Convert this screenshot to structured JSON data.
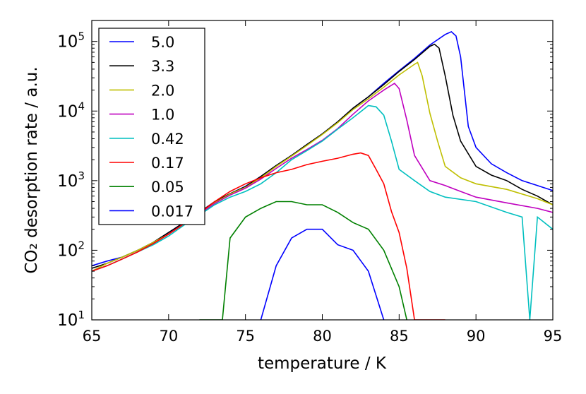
{
  "chart_data": {
    "type": "line",
    "xlabel": "temperature / K",
    "ylabel": "CO₂ desorption rate / a.u.",
    "xlim": [
      65,
      95
    ],
    "ylim": [
      10,
      200000
    ],
    "yscale": "log",
    "xticks": [
      "65",
      "70",
      "75",
      "80",
      "85",
      "90",
      "95"
    ],
    "yticks": [
      {
        "base": "10",
        "exp": "1"
      },
      {
        "base": "10",
        "exp": "2"
      },
      {
        "base": "10",
        "exp": "3"
      },
      {
        "base": "10",
        "exp": "4"
      },
      {
        "base": "10",
        "exp": "5"
      }
    ],
    "grid": false,
    "legend_placement": "top-left",
    "series": [
      {
        "name": "5.0",
        "color": "#0000ff",
        "points": [
          [
            65,
            60
          ],
          [
            66,
            70
          ],
          [
            67,
            80
          ],
          [
            68,
            100
          ],
          [
            69,
            130
          ],
          [
            70,
            180
          ],
          [
            71,
            250
          ],
          [
            72,
            350
          ],
          [
            73,
            500
          ],
          [
            74,
            650
          ],
          [
            75,
            830
          ],
          [
            76,
            1150
          ],
          [
            77,
            1650
          ],
          [
            78,
            2300
          ],
          [
            79,
            3300
          ],
          [
            80,
            4700
          ],
          [
            81,
            7000
          ],
          [
            82,
            11000
          ],
          [
            83,
            16000
          ],
          [
            84,
            25000
          ],
          [
            85,
            38000
          ],
          [
            86,
            57000
          ],
          [
            87,
            89000
          ],
          [
            88,
            126000
          ],
          [
            88.4,
            138000
          ],
          [
            88.7,
            120000
          ],
          [
            89,
            60000
          ],
          [
            89.5,
            6000
          ],
          [
            90,
            3000
          ],
          [
            91,
            1750
          ],
          [
            92,
            1300
          ],
          [
            93,
            1000
          ],
          [
            94,
            850
          ],
          [
            95,
            720
          ]
        ]
      },
      {
        "name": "3.3",
        "color": "#000000",
        "points": [
          [
            65,
            55
          ],
          [
            66,
            65
          ],
          [
            67,
            80
          ],
          [
            68,
            100
          ],
          [
            69,
            130
          ],
          [
            70,
            180
          ],
          [
            71,
            250
          ],
          [
            72,
            350
          ],
          [
            73,
            500
          ],
          [
            74,
            650
          ],
          [
            75,
            820
          ],
          [
            76,
            1150
          ],
          [
            77,
            1650
          ],
          [
            78,
            2300
          ],
          [
            79,
            3300
          ],
          [
            80,
            4700
          ],
          [
            81,
            7000
          ],
          [
            82,
            11000
          ],
          [
            83,
            16000
          ],
          [
            84,
            24000
          ],
          [
            85,
            37000
          ],
          [
            86,
            55000
          ],
          [
            87,
            85000
          ],
          [
            87.3,
            91000
          ],
          [
            87.6,
            80000
          ],
          [
            88,
            32000
          ],
          [
            88.5,
            8700
          ],
          [
            89,
            3700
          ],
          [
            90,
            1600
          ],
          [
            91,
            1200
          ],
          [
            92,
            1000
          ],
          [
            93,
            750
          ],
          [
            94,
            600
          ],
          [
            95,
            450
          ]
        ]
      },
      {
        "name": "2.0",
        "color": "#bfbf00",
        "points": [
          [
            65,
            50
          ],
          [
            66,
            65
          ],
          [
            67,
            80
          ],
          [
            68,
            100
          ],
          [
            69,
            130
          ],
          [
            70,
            170
          ],
          [
            71,
            240
          ],
          [
            72,
            330
          ],
          [
            73,
            480
          ],
          [
            74,
            640
          ],
          [
            75,
            800
          ],
          [
            76,
            1100
          ],
          [
            77,
            1600
          ],
          [
            78,
            2250
          ],
          [
            79,
            3200
          ],
          [
            80,
            4600
          ],
          [
            81,
            6800
          ],
          [
            82,
            10500
          ],
          [
            83,
            15000
          ],
          [
            84,
            22000
          ],
          [
            85,
            33000
          ],
          [
            86,
            47000
          ],
          [
            86.2,
            50000
          ],
          [
            86.5,
            32000
          ],
          [
            87,
            9300
          ],
          [
            87.5,
            3700
          ],
          [
            88,
            1600
          ],
          [
            89,
            1100
          ],
          [
            90,
            900
          ],
          [
            92,
            750
          ],
          [
            94,
            550
          ],
          [
            95,
            450
          ]
        ]
      },
      {
        "name": "1.0",
        "color": "#bf00bf",
        "points": [
          [
            65,
            50
          ],
          [
            66,
            60
          ],
          [
            67,
            75
          ],
          [
            68,
            95
          ],
          [
            69,
            125
          ],
          [
            70,
            170
          ],
          [
            71,
            240
          ],
          [
            72,
            330
          ],
          [
            73,
            470
          ],
          [
            74,
            620
          ],
          [
            75,
            780
          ],
          [
            76,
            1050
          ],
          [
            77,
            1500
          ],
          [
            78,
            2100
          ],
          [
            79,
            2800
          ],
          [
            80,
            3800
          ],
          [
            81,
            5600
          ],
          [
            82,
            9000
          ],
          [
            83,
            14000
          ],
          [
            84,
            20000
          ],
          [
            84.7,
            25000
          ],
          [
            85,
            21000
          ],
          [
            85.5,
            7400
          ],
          [
            86,
            2300
          ],
          [
            87,
            1000
          ],
          [
            88,
            850
          ],
          [
            89,
            700
          ],
          [
            90,
            580
          ],
          [
            92,
            480
          ],
          [
            94,
            400
          ],
          [
            95,
            350
          ]
        ]
      },
      {
        "name": "0.42",
        "color": "#00bfbf",
        "points": [
          [
            65,
            50
          ],
          [
            66,
            60
          ],
          [
            67,
            75
          ],
          [
            68,
            95
          ],
          [
            69,
            120
          ],
          [
            70,
            160
          ],
          [
            71,
            230
          ],
          [
            72,
            320
          ],
          [
            73,
            450
          ],
          [
            74,
            580
          ],
          [
            75,
            700
          ],
          [
            76,
            900
          ],
          [
            77,
            1300
          ],
          [
            78,
            2000
          ],
          [
            79,
            2700
          ],
          [
            80,
            3700
          ],
          [
            81,
            5500
          ],
          [
            82,
            8000
          ],
          [
            83,
            12000
          ],
          [
            83.5,
            11500
          ],
          [
            84,
            8700
          ],
          [
            84.5,
            3700
          ],
          [
            85,
            1450
          ],
          [
            86,
            1000
          ],
          [
            87,
            700
          ],
          [
            88,
            580
          ],
          [
            90,
            500
          ],
          [
            92,
            350
          ],
          [
            93,
            300
          ],
          [
            93.5,
            10
          ],
          [
            94,
            300
          ],
          [
            95,
            200
          ]
        ]
      },
      {
        "name": "0.17",
        "color": "#ff0000",
        "points": [
          [
            65,
            50
          ],
          [
            66,
            60
          ],
          [
            67,
            75
          ],
          [
            68,
            95
          ],
          [
            69,
            125
          ],
          [
            70,
            170
          ],
          [
            71,
            240
          ],
          [
            72,
            340
          ],
          [
            73,
            500
          ],
          [
            74,
            700
          ],
          [
            75,
            900
          ],
          [
            76,
            1100
          ],
          [
            77,
            1300
          ],
          [
            78,
            1450
          ],
          [
            79,
            1700
          ],
          [
            80,
            1900
          ],
          [
            81,
            2100
          ],
          [
            82,
            2400
          ],
          [
            82.5,
            2500
          ],
          [
            83,
            2300
          ],
          [
            83.5,
            1450
          ],
          [
            84,
            900
          ],
          [
            84.5,
            360
          ],
          [
            85,
            180
          ],
          [
            85.5,
            55
          ],
          [
            86,
            10
          ],
          [
            88,
            10
          ]
        ]
      },
      {
        "name": "0.05",
        "color": "#008000",
        "points": [
          [
            72,
            10
          ],
          [
            73.5,
            10
          ],
          [
            74,
            150
          ],
          [
            75,
            300
          ],
          [
            76,
            400
          ],
          [
            77,
            500
          ],
          [
            78,
            500
          ],
          [
            79,
            450
          ],
          [
            80,
            450
          ],
          [
            81,
            350
          ],
          [
            82,
            250
          ],
          [
            83,
            200
          ],
          [
            84,
            100
          ],
          [
            85,
            30
          ],
          [
            85.5,
            10
          ]
        ]
      },
      {
        "name": "0.017",
        "color": "#0000ff",
        "points": [
          [
            76,
            10
          ],
          [
            77,
            60
          ],
          [
            78,
            150
          ],
          [
            79,
            200
          ],
          [
            80,
            200
          ],
          [
            81,
            120
          ],
          [
            82,
            100
          ],
          [
            83,
            50
          ],
          [
            84,
            10
          ]
        ]
      }
    ]
  }
}
